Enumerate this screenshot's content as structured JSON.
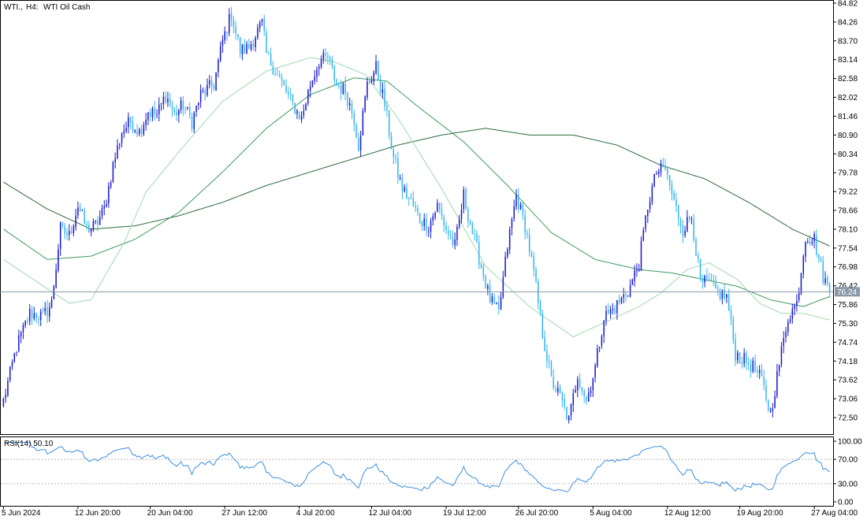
{
  "header": {
    "symbol": "WTI.,",
    "timeframe": "H4:",
    "instrument": "WTI Oil Cash"
  },
  "price_axis": {
    "ticks": [
      "84.82",
      "84.26",
      "83.70",
      "83.14",
      "82.58",
      "82.02",
      "81.46",
      "80.90",
      "80.34",
      "79.78",
      "79.22",
      "78.66",
      "78.10",
      "77.54",
      "76.98",
      "76.42",
      "75.86",
      "75.30",
      "74.74",
      "74.18",
      "73.62",
      "73.06",
      "72.50"
    ],
    "range": [
      72.0,
      84.95
    ],
    "current_price": "76.24",
    "current_price_value": 76.24
  },
  "rsi": {
    "label": "RSI(14) 50.10",
    "ticks": [
      "100.00",
      "70.00",
      "30.00",
      "0.00"
    ],
    "levels": [
      70,
      30
    ],
    "range": [
      0,
      100
    ]
  },
  "time_axis": {
    "labels": [
      "5 Jun 2024",
      "12 Jun 20:00",
      "20 Jun 04:00",
      "27 Jun 12:00",
      "4 Jul 20:00",
      "12 Jul 04:00",
      "19 Jul 12:00",
      "26 Jul 20:00",
      "5 Aug 04:00",
      "12 Aug 12:00",
      "19 Aug 20:00",
      "27 Aug 04:00"
    ]
  },
  "colors": {
    "bull": "#1a1acc",
    "bear": "#35b6ec",
    "ma_light": "#9ed9b0",
    "ma_mid": "#3d9a5a",
    "ma_dark": "#2c6a3c",
    "rsi_line": "#3b8fe0",
    "grid": "#b8b8b8"
  },
  "chart_data": {
    "type": "candlestick",
    "title": "",
    "anchors_close": [
      [
        0,
        73.0
      ],
      [
        6,
        74.6
      ],
      [
        12,
        75.6
      ],
      [
        18,
        75.5
      ],
      [
        22,
        75.9
      ],
      [
        26,
        78.1
      ],
      [
        30,
        77.9
      ],
      [
        34,
        78.8
      ],
      [
        38,
        78.1
      ],
      [
        42,
        78.2
      ],
      [
        46,
        78.7
      ],
      [
        50,
        80.0
      ],
      [
        54,
        81.0
      ],
      [
        58,
        81.3
      ],
      [
        62,
        81.0
      ],
      [
        66,
        81.6
      ],
      [
        70,
        81.5
      ],
      [
        74,
        82.1
      ],
      [
        78,
        81.5
      ],
      [
        82,
        81.8
      ],
      [
        86,
        81.3
      ],
      [
        90,
        82.1
      ],
      [
        96,
        82.4
      ],
      [
        100,
        83.7
      ],
      [
        104,
        84.5
      ],
      [
        108,
        83.4
      ],
      [
        112,
        83.5
      ],
      [
        116,
        84.0
      ],
      [
        118,
        84.2
      ],
      [
        120,
        83.3
      ],
      [
        124,
        82.8
      ],
      [
        128,
        82.3
      ],
      [
        132,
        81.8
      ],
      [
        136,
        81.4
      ],
      [
        140,
        82.4
      ],
      [
        144,
        83.1
      ],
      [
        148,
        83.2
      ],
      [
        152,
        82.4
      ],
      [
        156,
        82.2
      ],
      [
        160,
        81.4
      ],
      [
        162,
        80.6
      ],
      [
        166,
        82.4
      ],
      [
        170,
        82.9
      ],
      [
        174,
        81.8
      ],
      [
        178,
        80.2
      ],
      [
        182,
        79.3
      ],
      [
        186,
        78.9
      ],
      [
        190,
        78.4
      ],
      [
        194,
        78.2
      ],
      [
        198,
        78.8
      ],
      [
        202,
        78.1
      ],
      [
        206,
        77.6
      ],
      [
        210,
        79.1
      ],
      [
        214,
        78.0
      ],
      [
        218,
        77.0
      ],
      [
        222,
        76.0
      ],
      [
        226,
        75.6
      ],
      [
        230,
        77.6
      ],
      [
        234,
        79.1
      ],
      [
        238,
        78.2
      ],
      [
        242,
        76.8
      ],
      [
        246,
        75.0
      ],
      [
        250,
        73.6
      ],
      [
        254,
        73.1
      ],
      [
        258,
        72.4
      ],
      [
        262,
        73.8
      ],
      [
        266,
        73.0
      ],
      [
        270,
        74.0
      ],
      [
        274,
        75.5
      ],
      [
        278,
        75.7
      ],
      [
        282,
        76.0
      ],
      [
        286,
        76.4
      ],
      [
        290,
        77.1
      ],
      [
        294,
        78.8
      ],
      [
        298,
        79.8
      ],
      [
        302,
        79.9
      ],
      [
        306,
        78.9
      ],
      [
        310,
        78.1
      ],
      [
        314,
        78.5
      ],
      [
        318,
        76.5
      ],
      [
        322,
        76.5
      ],
      [
        326,
        76.2
      ],
      [
        330,
        76.1
      ],
      [
        334,
        74.4
      ],
      [
        338,
        74.2
      ],
      [
        342,
        74.0
      ],
      [
        346,
        73.6
      ],
      [
        350,
        72.6
      ],
      [
        354,
        74.1
      ],
      [
        358,
        75.5
      ],
      [
        362,
        75.9
      ],
      [
        366,
        77.9
      ],
      [
        370,
        77.8
      ],
      [
        374,
        76.7
      ],
      [
        377,
        76.24
      ]
    ],
    "ma_fast_anchors": [
      [
        0,
        77.2
      ],
      [
        30,
        75.9
      ],
      [
        40,
        76.0
      ],
      [
        55,
        77.7
      ],
      [
        65,
        79.2
      ],
      [
        80,
        80.4
      ],
      [
        100,
        81.9
      ],
      [
        120,
        82.8
      ],
      [
        140,
        83.2
      ],
      [
        150,
        83.1
      ],
      [
        165,
        82.7
      ],
      [
        180,
        81.4
      ],
      [
        200,
        79.3
      ],
      [
        220,
        77.0
      ],
      [
        240,
        75.8
      ],
      [
        260,
        74.9
      ],
      [
        270,
        75.2
      ],
      [
        290,
        75.8
      ],
      [
        300,
        76.2
      ],
      [
        312,
        76.9
      ],
      [
        322,
        77.1
      ],
      [
        335,
        76.6
      ],
      [
        345,
        75.9
      ],
      [
        355,
        75.6
      ],
      [
        365,
        75.6
      ],
      [
        377,
        75.4
      ]
    ],
    "ma_mid_anchors": [
      [
        0,
        78.1
      ],
      [
        20,
        77.2
      ],
      [
        40,
        77.3
      ],
      [
        60,
        77.8
      ],
      [
        80,
        78.6
      ],
      [
        100,
        79.8
      ],
      [
        120,
        81.1
      ],
      [
        140,
        82.1
      ],
      [
        160,
        82.6
      ],
      [
        175,
        82.5
      ],
      [
        190,
        81.7
      ],
      [
        210,
        80.7
      ],
      [
        230,
        79.4
      ],
      [
        250,
        78.0
      ],
      [
        270,
        77.2
      ],
      [
        290,
        76.9
      ],
      [
        305,
        76.8
      ],
      [
        320,
        76.6
      ],
      [
        335,
        76.4
      ],
      [
        350,
        76.0
      ],
      [
        365,
        75.8
      ],
      [
        377,
        76.1
      ]
    ],
    "ma_slow_anchors": [
      [
        0,
        79.5
      ],
      [
        20,
        78.7
      ],
      [
        40,
        78.1
      ],
      [
        60,
        78.2
      ],
      [
        80,
        78.5
      ],
      [
        100,
        78.9
      ],
      [
        120,
        79.4
      ],
      [
        140,
        79.8
      ],
      [
        160,
        80.2
      ],
      [
        180,
        80.6
      ],
      [
        200,
        80.9
      ],
      [
        220,
        81.1
      ],
      [
        240,
        80.9
      ],
      [
        260,
        80.9
      ],
      [
        280,
        80.6
      ],
      [
        300,
        80.0
      ],
      [
        320,
        79.6
      ],
      [
        340,
        78.9
      ],
      [
        360,
        78.1
      ],
      [
        377,
        77.6
      ]
    ],
    "ma_fast_name": "",
    "ma_mid_name": "",
    "ma_slow_name": "",
    "rsi_last": 50.1,
    "xlabel": "",
    "ylabel": ""
  }
}
